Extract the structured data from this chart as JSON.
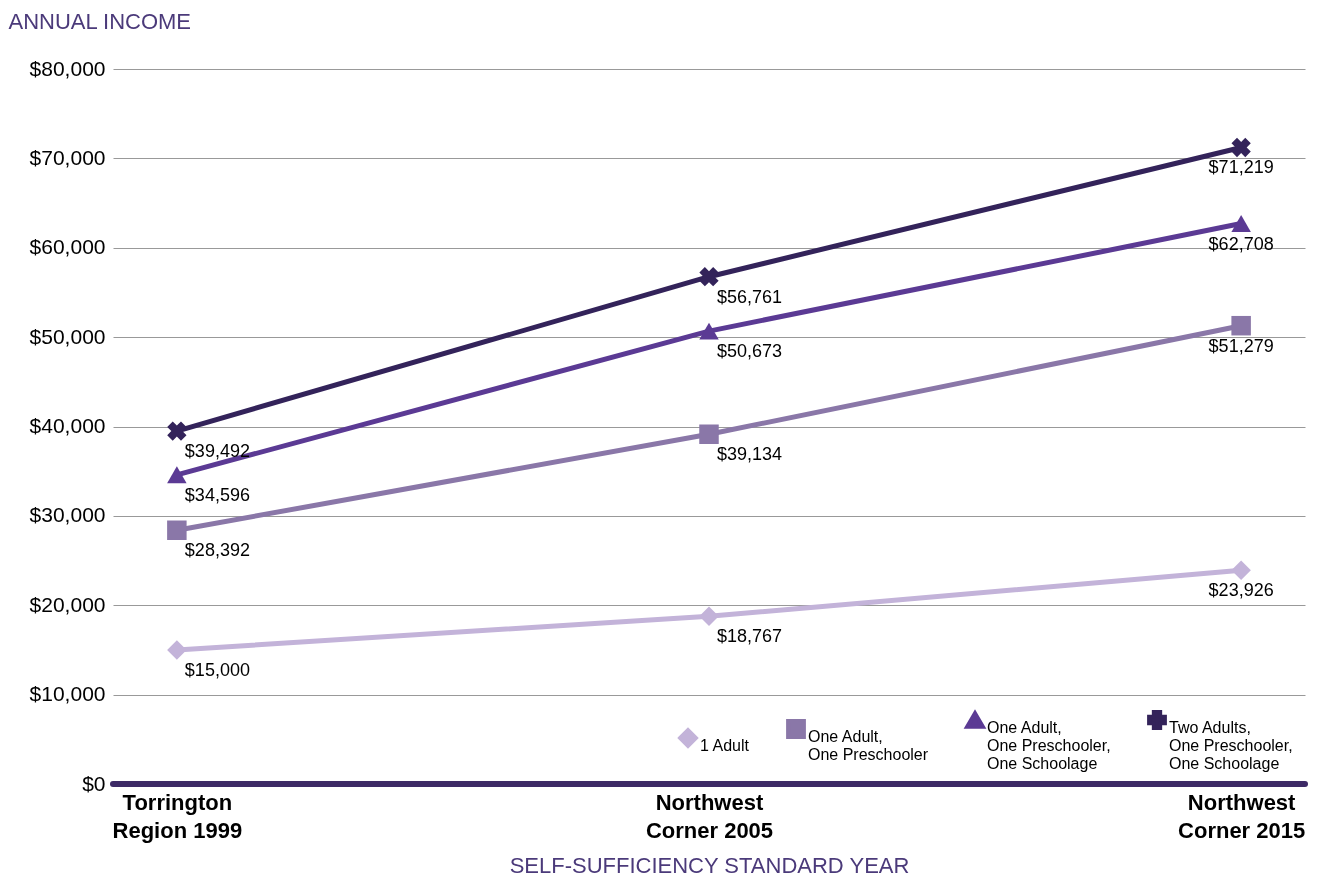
{
  "chart_data": {
    "type": "line",
    "ylabel": "ANNUAL INCOME",
    "xlabel": "SELF-SUFFICIENCY STANDARD YEAR",
    "categories": [
      "Torrington\nRegion 1999",
      "Northwest\nCorner 2005",
      "Northwest\nCorner 2015"
    ],
    "ylim": [
      0,
      80000
    ],
    "yticks": [
      {
        "value": 0,
        "label": "$0"
      },
      {
        "value": 10000,
        "label": "$10,000"
      },
      {
        "value": 20000,
        "label": "$20,000"
      },
      {
        "value": 30000,
        "label": "$30,000"
      },
      {
        "value": 40000,
        "label": "$40,000"
      },
      {
        "value": 50000,
        "label": "$50,000"
      },
      {
        "value": 60000,
        "label": "$60,000"
      },
      {
        "value": 70000,
        "label": "$70,000"
      },
      {
        "value": 80000,
        "label": "$80,000"
      }
    ],
    "grid": "y",
    "legend": "bottom right",
    "series": [
      {
        "name": "1 Adult",
        "color": "#c3b3d9",
        "marker": "diamond",
        "values": [
          15000,
          18767,
          23926
        ],
        "value_labels": [
          "$15,000",
          "$18,767",
          "$23,926"
        ]
      },
      {
        "name": "One Adult,\nOne Preschooler",
        "color": "#8a77a8",
        "marker": "square",
        "values": [
          28392,
          39134,
          51279
        ],
        "value_labels": [
          "$28,392",
          "$39,134",
          "$51,279"
        ]
      },
      {
        "name": "One Adult,\nOne Preschooler,\nOne Schoolage",
        "color": "#5b3a94",
        "marker": "triangle",
        "values": [
          34596,
          50673,
          62708
        ],
        "value_labels": [
          "$34,596",
          "$50,673",
          "$62,708"
        ]
      },
      {
        "name": "Two Adults,\nOne Preschooler,\nOne Schoolage",
        "color": "#33235a",
        "marker": "cross",
        "values": [
          39492,
          56761,
          71219
        ],
        "value_labels": [
          "$39,492",
          "$56,761",
          "$71,219"
        ]
      }
    ]
  }
}
